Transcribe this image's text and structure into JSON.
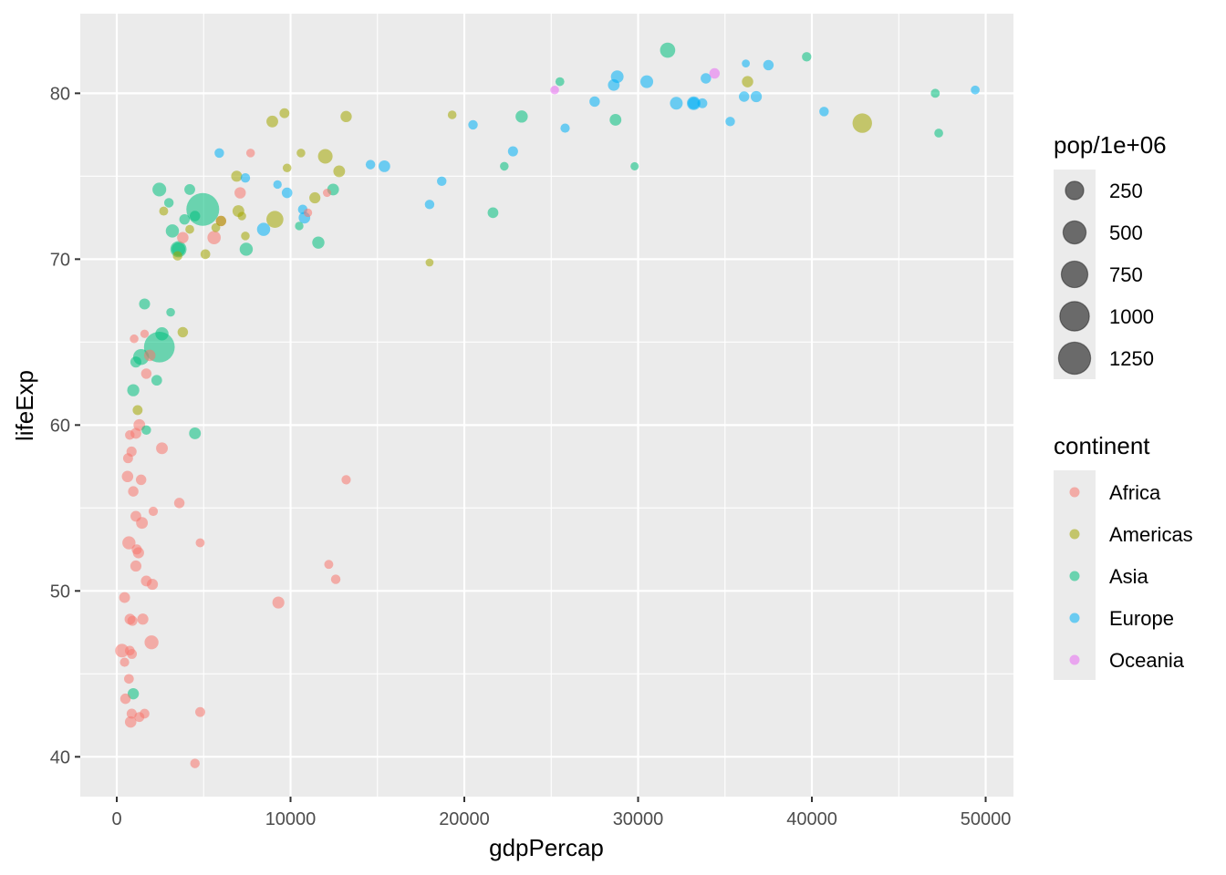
{
  "chart_data": {
    "type": "scatter",
    "xlabel": "gdpPercap",
    "ylabel": "lifeExp",
    "xlim": [
      -2100,
      51600
    ],
    "ylim": [
      37.6,
      84.8
    ],
    "x_ticks": [
      0,
      10000,
      20000,
      30000,
      40000,
      50000
    ],
    "x_tick_labels": [
      "0",
      "10000",
      "20000",
      "30000",
      "40000",
      "50000"
    ],
    "y_ticks": [
      40,
      50,
      60,
      70,
      80
    ],
    "y_tick_labels": [
      "40",
      "50",
      "60",
      "70",
      "80"
    ],
    "grid": true,
    "size_legend": {
      "title": "pop/1e+06",
      "values": [
        250,
        500,
        750,
        1000,
        1250
      ],
      "labels": [
        "250",
        "500",
        "750",
        "1000",
        "1250"
      ]
    },
    "color_legend": {
      "title": "continent",
      "placement": "right"
    },
    "colors": {
      "Africa": "#F8766D",
      "Americas": "#A3A500",
      "Asia": "#00BF7D",
      "Europe": "#00B0F6",
      "Oceania": "#E76BF3"
    },
    "series": [
      {
        "name": "Africa",
        "points": [
          [
            300,
            46.4,
            80
          ],
          [
            450,
            45.7,
            8
          ],
          [
            500,
            43.5,
            20
          ],
          [
            450,
            49.6,
            25
          ],
          [
            620,
            56.9,
            35
          ],
          [
            650,
            58.0,
            14
          ],
          [
            700,
            44.7,
            12
          ],
          [
            750,
            46.4,
            12
          ],
          [
            750,
            59.4,
            10
          ],
          [
            760,
            48.3,
            25
          ],
          [
            700,
            52.9,
            70
          ],
          [
            850,
            58.4,
            16
          ],
          [
            860,
            42.6,
            16
          ],
          [
            870,
            46.2,
            14
          ],
          [
            900,
            48.2,
            15
          ],
          [
            800,
            42.1,
            35
          ],
          [
            950,
            56.0,
            20
          ],
          [
            1000,
            65.2,
            4
          ],
          [
            1100,
            59.5,
            25
          ],
          [
            1100,
            54.5,
            25
          ],
          [
            1100,
            51.5,
            30
          ],
          [
            1150,
            52.5,
            16
          ],
          [
            1250,
            52.3,
            30
          ],
          [
            1300,
            60.0,
            40
          ],
          [
            1300,
            42.4,
            14
          ],
          [
            1400,
            56.7,
            20
          ],
          [
            1450,
            54.1,
            40
          ],
          [
            1500,
            48.3,
            30
          ],
          [
            1600,
            65.5,
            3
          ],
          [
            1600,
            42.6,
            12
          ],
          [
            1700,
            50.6,
            25
          ],
          [
            1700,
            63.1,
            20
          ],
          [
            1900,
            64.2,
            35
          ],
          [
            2000,
            46.9,
            90
          ],
          [
            2050,
            50.4,
            30
          ],
          [
            2100,
            54.8,
            8
          ],
          [
            2600,
            58.6,
            40
          ],
          [
            3600,
            55.3,
            20
          ],
          [
            3800,
            71.3,
            34
          ],
          [
            4500,
            39.6,
            10
          ],
          [
            4800,
            42.7,
            14
          ],
          [
            4800,
            52.9,
            6
          ],
          [
            5600,
            71.3,
            74
          ],
          [
            6000,
            72.3,
            20
          ],
          [
            7100,
            74.0,
            33
          ],
          [
            7700,
            76.4,
            4
          ],
          [
            9300,
            49.3,
            44
          ],
          [
            11000,
            72.8,
            3
          ],
          [
            12100,
            74.0,
            2
          ],
          [
            12200,
            51.6,
            6
          ],
          [
            12600,
            50.7,
            10
          ],
          [
            13200,
            56.7,
            8
          ]
        ]
      },
      {
        "name": "Americas",
        "points": [
          [
            1200,
            60.9,
            14
          ],
          [
            2700,
            72.9,
            6
          ],
          [
            3500,
            70.2,
            10
          ],
          [
            3800,
            65.6,
            20
          ],
          [
            4200,
            71.8,
            5
          ],
          [
            5100,
            70.3,
            12
          ],
          [
            5700,
            71.9,
            5
          ],
          [
            6000,
            72.3,
            19
          ],
          [
            6900,
            75.0,
            28
          ],
          [
            7000,
            72.9,
            40
          ],
          [
            7200,
            72.6,
            3
          ],
          [
            7400,
            71.4,
            4
          ],
          [
            8950,
            78.3,
            40
          ],
          [
            9100,
            72.4,
            190
          ],
          [
            9650,
            78.8,
            14
          ],
          [
            9800,
            75.5,
            4
          ],
          [
            10600,
            76.4,
            4
          ],
          [
            11400,
            73.7,
            30
          ],
          [
            12000,
            76.2,
            108
          ],
          [
            12800,
            75.3,
            40
          ],
          [
            13200,
            78.6,
            32
          ],
          [
            18000,
            69.8,
            1
          ],
          [
            19300,
            78.7,
            4
          ],
          [
            36300,
            80.7,
            33
          ],
          [
            42900,
            78.2,
            301
          ]
        ]
      },
      {
        "name": "Asia",
        "points": [
          [
            950,
            43.8,
            32
          ],
          [
            950,
            62.1,
            47
          ],
          [
            1100,
            63.8,
            28
          ],
          [
            1400,
            64.1,
            150
          ],
          [
            1600,
            67.3,
            28
          ],
          [
            1700,
            59.7,
            10
          ],
          [
            2300,
            62.7,
            23
          ],
          [
            2450,
            74.2,
            85
          ],
          [
            2450,
            64.7,
            1110
          ],
          [
            2600,
            65.5,
            70
          ],
          [
            3000,
            73.4,
            10
          ],
          [
            3100,
            66.8,
            4
          ],
          [
            3200,
            71.7,
            70
          ],
          [
            3550,
            70.6,
            160
          ],
          [
            3550,
            70.6,
            80
          ],
          [
            3900,
            72.4,
            20
          ],
          [
            4200,
            74.2,
            25
          ],
          [
            4500,
            72.6,
            20
          ],
          [
            4500,
            59.5,
            40
          ],
          [
            4950,
            73.0,
            1319
          ],
          [
            7450,
            70.6,
            70
          ],
          [
            10500,
            72.0,
            3
          ],
          [
            11600,
            71.0,
            49
          ],
          [
            12450,
            74.2,
            40
          ],
          [
            21650,
            72.8,
            24
          ],
          [
            22300,
            75.6,
            4
          ],
          [
            23300,
            78.6,
            49
          ],
          [
            25500,
            80.7,
            5
          ],
          [
            28700,
            78.4,
            40
          ],
          [
            29800,
            75.6,
            2
          ],
          [
            31700,
            82.6,
            127
          ],
          [
            39700,
            82.2,
            9
          ],
          [
            47100,
            80.0,
            6
          ],
          [
            47300,
            77.6,
            5
          ]
        ]
      },
      {
        "name": "Europe",
        "points": [
          [
            5900,
            76.4,
            10
          ],
          [
            7400,
            74.9,
            10
          ],
          [
            8450,
            71.8,
            71
          ],
          [
            9250,
            74.5,
            3
          ],
          [
            9800,
            74.0,
            22
          ],
          [
            10700,
            73.0,
            10
          ],
          [
            10800,
            72.5,
            38
          ],
          [
            14600,
            75.7,
            10
          ],
          [
            15400,
            75.6,
            38
          ],
          [
            18000,
            73.3,
            10
          ],
          [
            18700,
            74.7,
            10
          ],
          [
            20500,
            78.1,
            10
          ],
          [
            22800,
            76.5,
            16
          ],
          [
            25800,
            77.9,
            8
          ],
          [
            27500,
            79.5,
            20
          ],
          [
            28600,
            80.5,
            39
          ],
          [
            28800,
            81.0,
            58
          ],
          [
            30500,
            80.7,
            61
          ],
          [
            32200,
            79.4,
            60
          ],
          [
            33200,
            79.4,
            82
          ],
          [
            33200,
            79.4,
            40
          ],
          [
            33700,
            79.4,
            13
          ],
          [
            33900,
            80.9,
            20
          ],
          [
            35300,
            78.3,
            10
          ],
          [
            36100,
            79.8,
            20
          ],
          [
            36200,
            81.8,
            1
          ],
          [
            36800,
            79.8,
            30
          ],
          [
            37500,
            81.7,
            20
          ],
          [
            40700,
            78.9,
            10
          ],
          [
            49400,
            80.2,
            5
          ]
        ]
      },
      {
        "name": "Oceania",
        "points": [
          [
            25200,
            80.2,
            4
          ],
          [
            34400,
            81.2,
            20
          ]
        ]
      }
    ]
  }
}
